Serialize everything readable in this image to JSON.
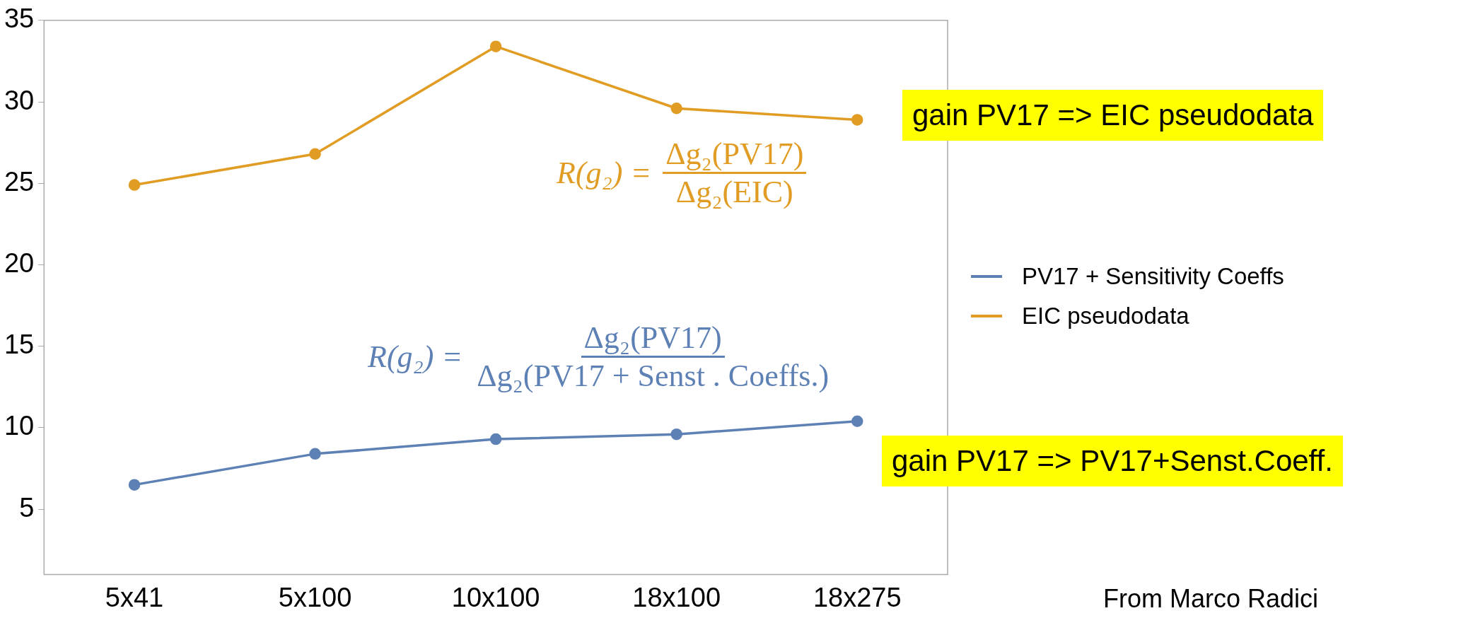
{
  "chart_data": {
    "type": "line",
    "categories": [
      "5x41",
      "5x100",
      "10x100",
      "18x100",
      "18x275"
    ],
    "series": [
      {
        "name": "PV17  + Sensitivity Coeffs",
        "color": "#5e81b5",
        "values": [
          6.5,
          8.4,
          9.3,
          9.6,
          10.4
        ]
      },
      {
        "name": "EIC pseudodata",
        "color": "#e19c24",
        "values": [
          24.9,
          26.8,
          33.4,
          29.6,
          28.9
        ]
      }
    ],
    "ylim": [
      1,
      35
    ],
    "yticks": [
      5,
      10,
      15,
      20,
      25,
      30,
      35
    ],
    "marker": "circle",
    "line_style": "solid",
    "legend": "right",
    "grid": false,
    "annotations": [
      "R(g₂) =",
      "Δg₂(PV17)",
      "Δg₂(EIC)",
      "R(g₂) =",
      "Δg₂(PV17)",
      "Δg₂(PV17 + Senst . Coeffs.)",
      "gain  PV17 => EIC pseudodata",
      "gain  PV17 => PV17+Senst.Coeff.",
      "From Marco Radici"
    ]
  }
}
